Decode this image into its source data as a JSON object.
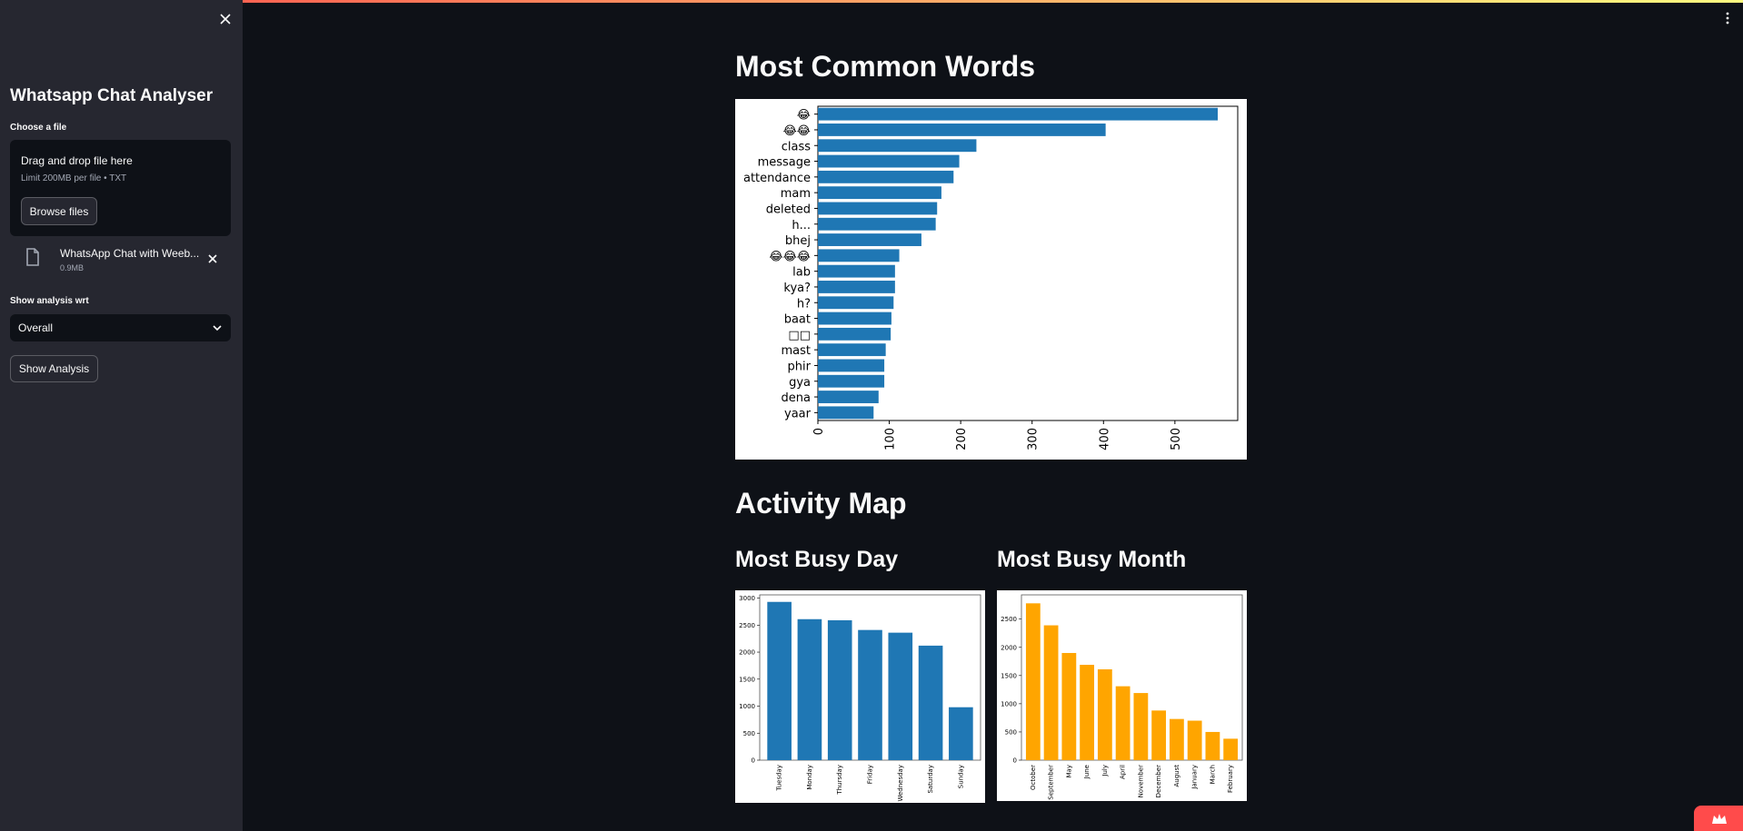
{
  "sidebar": {
    "title": "Whatsapp Chat Analyser",
    "upload_label": "Choose a file",
    "dropzone_title": "Drag and drop file here",
    "dropzone_limit": "Limit 200MB per file • TXT",
    "browse_label": "Browse files",
    "file_name": "WhatsApp Chat with Weeb...",
    "file_size": "0.9MB",
    "analysis_label": "Show analysis wrt",
    "analysis_selected": "Overall",
    "show_button": "Show Analysis"
  },
  "main": {
    "heading_common_words": "Most Common Words",
    "heading_activity": "Activity Map",
    "heading_busy_day": "Most Busy Day",
    "heading_busy_month": "Most Busy Month"
  },
  "colors": {
    "accent": "#ff4b4b",
    "bar_blue": "#1f77b4",
    "bar_orange": "#ffa500"
  },
  "chart_data": [
    {
      "type": "bar",
      "orientation": "horizontal",
      "categories": [
        "yaar",
        "dena",
        "gya",
        "phir",
        "mast",
        "□□",
        "baat",
        "h?",
        "kya?",
        "lab",
        "😂😂😂",
        "bhej",
        "h...",
        "deleted",
        "mam",
        "attendance",
        "message",
        "class",
        "😂😂",
        "😂"
      ],
      "values": [
        78,
        85,
        93,
        93,
        95,
        102,
        103,
        106,
        108,
        108,
        114,
        145,
        165,
        167,
        173,
        190,
        198,
        222,
        403,
        560
      ],
      "xticks": [
        0,
        100,
        200,
        300,
        400,
        500
      ],
      "xlim": [
        0,
        588
      ],
      "color": "#1f77b4"
    },
    {
      "type": "bar",
      "categories": [
        "Tuesday",
        "Monday",
        "Thursday",
        "Friday",
        "Wednesday",
        "Saturday",
        "Sunday"
      ],
      "values": [
        2930,
        2610,
        2590,
        2410,
        2360,
        2120,
        980
      ],
      "yticks": [
        0,
        500,
        1000,
        1500,
        2000,
        2500,
        3000
      ],
      "ylim": [
        0,
        3060
      ],
      "color": "#1f77b4"
    },
    {
      "type": "bar",
      "categories": [
        "October",
        "September",
        "May",
        "June",
        "July",
        "April",
        "November",
        "December",
        "August",
        "January",
        "March",
        "February"
      ],
      "values": [
        2780,
        2390,
        1900,
        1690,
        1610,
        1310,
        1190,
        880,
        730,
        700,
        500,
        380
      ],
      "yticks": [
        0,
        500,
        1000,
        1500,
        2000,
        2500
      ],
      "ylim": [
        0,
        2930
      ],
      "color": "#ffa500"
    }
  ]
}
